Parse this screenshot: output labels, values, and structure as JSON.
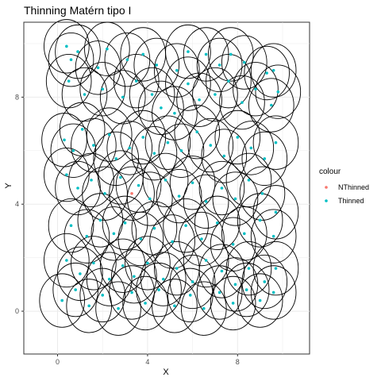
{
  "chart_data": {
    "type": "scatter",
    "title": "Thinning Matérn tipo I",
    "xlabel": "X",
    "ylabel": "Y",
    "xlim": [
      -1.5,
      11.2
    ],
    "ylim": [
      -1.6,
      10.8
    ],
    "xticks": [
      0,
      4,
      8
    ],
    "yticks": [
      0,
      4,
      8
    ],
    "grid": true,
    "legend": {
      "title": "colour",
      "position": "right",
      "entries": [
        {
          "label": "NThinned",
          "color": "#F8766D"
        },
        {
          "label": "Thinned",
          "color": "#00BFC4"
        }
      ]
    },
    "circle_radius": 1.0,
    "circle_color": "#000000",
    "series": [
      {
        "name": "NThinned",
        "color": "#F8766D",
        "points": [
          [
            3.3,
            4.4
          ]
        ]
      },
      {
        "name": "Thinned",
        "color": "#00BFC4",
        "points": [
          [
            0.4,
            9.9
          ],
          [
            0.6,
            9.4
          ],
          [
            0.9,
            9.7
          ],
          [
            1.8,
            9.1
          ],
          [
            2.2,
            9.8
          ],
          [
            3.1,
            9.4
          ],
          [
            3.8,
            9.6
          ],
          [
            4.4,
            9.2
          ],
          [
            5.3,
            9.0
          ],
          [
            5.8,
            9.7
          ],
          [
            6.6,
            9.6
          ],
          [
            7.2,
            9.2
          ],
          [
            7.7,
            9.6
          ],
          [
            8.3,
            9.3
          ],
          [
            9.3,
            8.9
          ],
          [
            9.6,
            9.0
          ],
          [
            0.5,
            8.6
          ],
          [
            1.2,
            8.1
          ],
          [
            2.0,
            8.3
          ],
          [
            2.9,
            8.0
          ],
          [
            3.5,
            8.6
          ],
          [
            4.2,
            8.1
          ],
          [
            4.6,
            7.6
          ],
          [
            5.2,
            7.4
          ],
          [
            5.8,
            8.5
          ],
          [
            6.3,
            7.9
          ],
          [
            7.0,
            8.1
          ],
          [
            7.6,
            8.6
          ],
          [
            8.2,
            7.8
          ],
          [
            8.8,
            8.3
          ],
          [
            9.5,
            7.7
          ],
          [
            9.8,
            8.2
          ],
          [
            0.3,
            6.4
          ],
          [
            0.7,
            6.0
          ],
          [
            1.1,
            6.8
          ],
          [
            1.6,
            6.2
          ],
          [
            2.3,
            6.6
          ],
          [
            2.6,
            5.7
          ],
          [
            3.2,
            6.1
          ],
          [
            3.8,
            6.5
          ],
          [
            4.3,
            5.9
          ],
          [
            4.9,
            6.3
          ],
          [
            5.5,
            6.0
          ],
          [
            6.2,
            6.7
          ],
          [
            6.8,
            6.2
          ],
          [
            7.4,
            5.8
          ],
          [
            8.0,
            6.5
          ],
          [
            8.6,
            6.1
          ],
          [
            9.2,
            5.7
          ],
          [
            9.7,
            6.3
          ],
          [
            0.4,
            5.1
          ],
          [
            0.9,
            4.6
          ],
          [
            1.5,
            4.9
          ],
          [
            2.1,
            4.4
          ],
          [
            2.8,
            5.0
          ],
          [
            3.6,
            4.7
          ],
          [
            4.1,
            4.2
          ],
          [
            4.8,
            4.9
          ],
          [
            5.4,
            4.3
          ],
          [
            6.0,
            4.8
          ],
          [
            6.6,
            4.1
          ],
          [
            7.3,
            4.6
          ],
          [
            7.9,
            4.2
          ],
          [
            8.5,
            4.9
          ],
          [
            9.1,
            4.4
          ],
          [
            9.7,
            3.7
          ],
          [
            0.6,
            3.2
          ],
          [
            1.3,
            2.8
          ],
          [
            1.9,
            3.4
          ],
          [
            2.5,
            2.9
          ],
          [
            3.0,
            3.3
          ],
          [
            3.7,
            2.7
          ],
          [
            4.3,
            3.1
          ],
          [
            5.1,
            2.6
          ],
          [
            5.7,
            3.2
          ],
          [
            6.4,
            2.7
          ],
          [
            7.1,
            3.3
          ],
          [
            7.8,
            2.5
          ],
          [
            8.3,
            2.9
          ],
          [
            9.0,
            3.4
          ],
          [
            9.6,
            2.8
          ],
          [
            0.4,
            1.9
          ],
          [
            1.0,
            1.4
          ],
          [
            1.6,
            1.8
          ],
          [
            2.3,
            1.2
          ],
          [
            2.9,
            1.7
          ],
          [
            3.4,
            1.3
          ],
          [
            4.0,
            1.8
          ],
          [
            4.7,
            1.2
          ],
          [
            5.3,
            1.6
          ],
          [
            6.0,
            1.1
          ],
          [
            6.6,
            1.9
          ],
          [
            7.3,
            1.5
          ],
          [
            7.9,
            1.0
          ],
          [
            8.5,
            1.6
          ],
          [
            9.2,
            1.1
          ],
          [
            9.7,
            1.6
          ],
          [
            0.2,
            0.4
          ],
          [
            0.8,
            0.8
          ],
          [
            1.4,
            0.2
          ],
          [
            2.0,
            0.6
          ],
          [
            2.7,
            0.1
          ],
          [
            3.3,
            0.7
          ],
          [
            3.9,
            0.3
          ],
          [
            4.5,
            0.8
          ],
          [
            5.2,
            0.2
          ],
          [
            5.9,
            0.6
          ],
          [
            6.5,
            0.1
          ],
          [
            7.2,
            0.7
          ],
          [
            7.8,
            0.3
          ],
          [
            8.4,
            0.8
          ],
          [
            9.0,
            0.4
          ],
          [
            9.6,
            0.7
          ]
        ]
      }
    ]
  }
}
